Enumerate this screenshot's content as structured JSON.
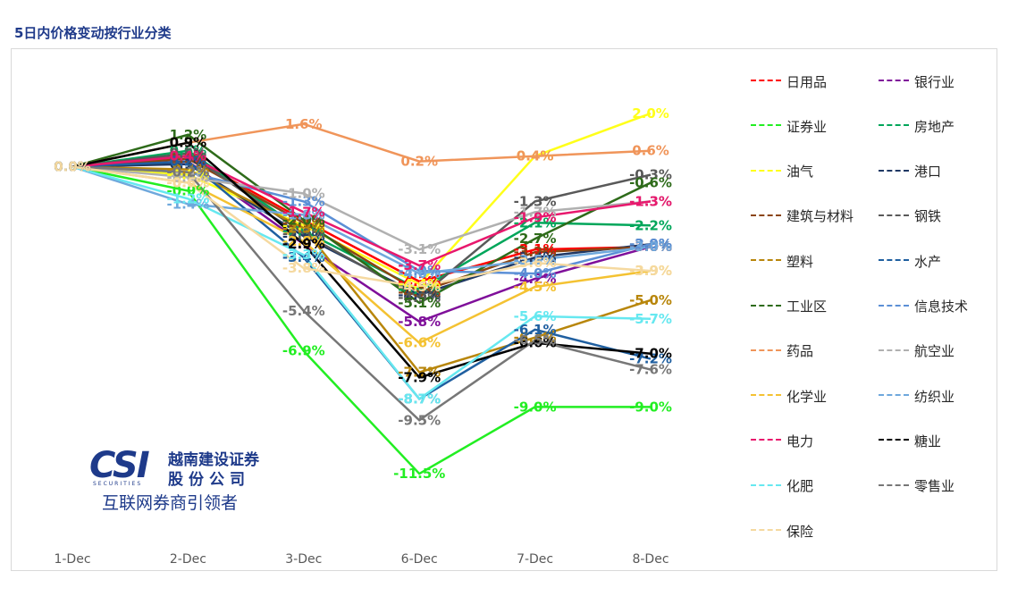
{
  "title": "5日内价格变动按行业分类",
  "logo": {
    "mark": "CSI",
    "sub": "SECURITIES",
    "name_line1": "越南建设证券",
    "name_line2": "股份公司",
    "tagline": "互联网券商引领者"
  },
  "chart_data": {
    "type": "line",
    "title": "5日内价格变动按行业分类",
    "categories": [
      "1-Dec",
      "2-Dec",
      "3-Dec",
      "6-Dec",
      "7-Dec",
      "8-Dec"
    ],
    "ylim": [
      -12,
      3
    ],
    "grid": false,
    "legend_position": "right",
    "value_suffix": "%",
    "series": [
      {
        "name": "日用品",
        "color": "#ff0000",
        "values": [
          0.0,
          0.4,
          -2.0,
          -4.3,
          -3.1,
          -3.0
        ]
      },
      {
        "name": "银行业",
        "color": "#7f0f9a",
        "values": [
          0.0,
          0.2,
          -2.9,
          -5.8,
          -4.2,
          -3.0
        ]
      },
      {
        "name": "证券业",
        "color": "#22ee22",
        "values": [
          0.0,
          -0.9,
          -6.9,
          -11.5,
          -9.0,
          -9.0
        ]
      },
      {
        "name": "房地产",
        "color": "#00a65a",
        "values": [
          0.0,
          0.6,
          -2.4,
          -4.6,
          -2.1,
          -2.2
        ]
      },
      {
        "name": "油气",
        "color": "#ffff1a",
        "values": [
          0.0,
          -0.3,
          -2.2,
          -4.4,
          0.4,
          2.0
        ]
      },
      {
        "name": "港口",
        "color": "#1f3864",
        "values": [
          0.0,
          0.1,
          -2.6,
          -4.8,
          -3.4,
          -2.9
        ]
      },
      {
        "name": "建筑与材料",
        "color": "#8b4513",
        "values": [
          0.0,
          0.3,
          -2.1,
          -4.7,
          -3.2,
          -3.0
        ]
      },
      {
        "name": "钢铁",
        "color": "#595959",
        "values": [
          0.0,
          0.5,
          -2.5,
          -4.9,
          -1.3,
          -0.3
        ]
      },
      {
        "name": "塑料",
        "color": "#b8860b",
        "values": [
          0.0,
          -0.1,
          -2.3,
          -7.7,
          -6.4,
          -5.0
        ]
      },
      {
        "name": "水产",
        "color": "#1f5fa0",
        "values": [
          0.0,
          0.2,
          -3.4,
          -8.7,
          -6.1,
          -7.2
        ]
      },
      {
        "name": "工业区",
        "color": "#2e6b1a",
        "values": [
          0.0,
          1.2,
          -2.0,
          -5.1,
          -2.7,
          -0.6
        ]
      },
      {
        "name": "信息技术",
        "color": "#5b8fd6",
        "values": [
          0.0,
          -0.2,
          -1.3,
          -3.9,
          -4.0,
          -2.9
        ]
      },
      {
        "name": "药品",
        "color": "#f0955a",
        "values": [
          0.0,
          0.9,
          1.6,
          0.2,
          0.4,
          0.6
        ]
      },
      {
        "name": "航空业",
        "color": "#b0b0b0",
        "values": [
          0.0,
          -0.4,
          -1.0,
          -3.1,
          -1.7,
          -1.3
        ]
      },
      {
        "name": "化学业",
        "color": "#f4c232",
        "values": [
          0.0,
          -0.6,
          -2.8,
          -6.6,
          -4.5,
          -3.9
        ]
      },
      {
        "name": "纺织业",
        "color": "#6fa8dc",
        "values": [
          0.0,
          -1.4,
          -1.8,
          -4.0,
          -3.5,
          -3.0
        ]
      },
      {
        "name": "电力",
        "color": "#e8186d",
        "values": [
          0.0,
          0.4,
          -1.7,
          -3.7,
          -1.9,
          -1.3
        ]
      },
      {
        "name": "糖业",
        "color": "#000000",
        "values": [
          0.0,
          0.9,
          -2.9,
          -7.9,
          -6.6,
          -7.0
        ]
      },
      {
        "name": "化肥",
        "color": "#66e8f0",
        "values": [
          0.0,
          -1.2,
          -3.3,
          -8.7,
          -5.6,
          -5.7
        ]
      },
      {
        "name": "零售业",
        "color": "#777777",
        "values": [
          0.0,
          -0.2,
          -5.4,
          -9.5,
          -6.5,
          -7.6
        ]
      },
      {
        "name": "保险",
        "color": "#f5d9a0",
        "values": [
          0.0,
          -0.6,
          -3.8,
          -4.5,
          -3.6,
          -3.9
        ]
      }
    ]
  }
}
